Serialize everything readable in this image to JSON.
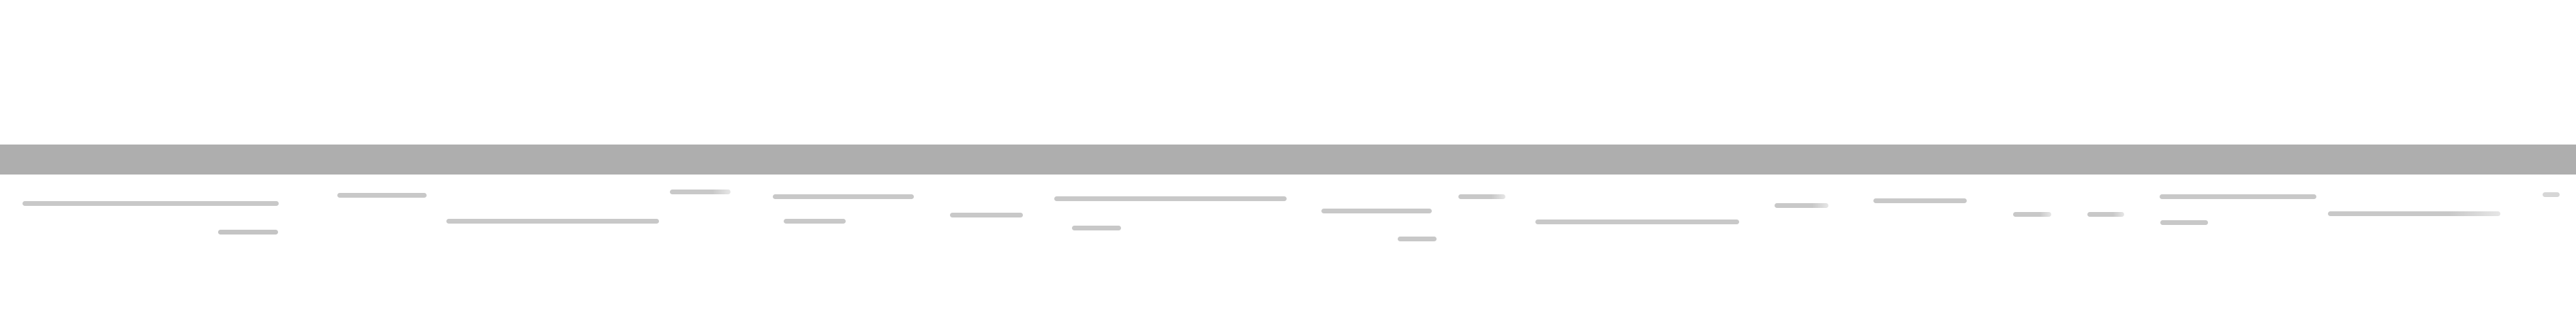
{
  "colors": {
    "background": "#ffffff",
    "toolbar": "#aeaeae",
    "skeleton_text": "#c8c8c8"
  },
  "text_content": []
}
